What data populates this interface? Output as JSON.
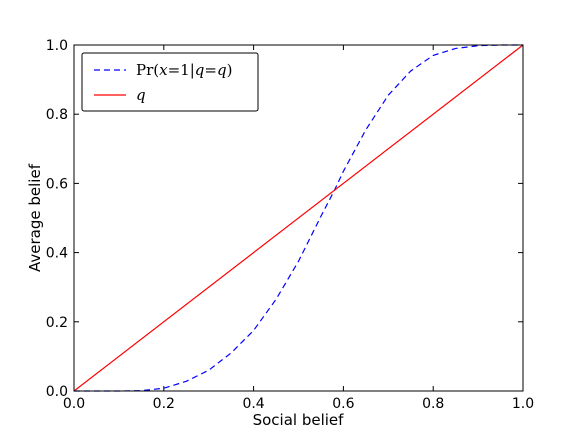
{
  "chart_data": {
    "type": "line",
    "title": "",
    "xlabel": "Social belief",
    "ylabel": "Average belief",
    "xlim": [
      0.0,
      1.0
    ],
    "ylim": [
      0.0,
      1.0
    ],
    "xticks": [
      "0.0",
      "0.2",
      "0.4",
      "0.6",
      "0.8",
      "1.0"
    ],
    "yticks": [
      "0.0",
      "0.2",
      "0.4",
      "0.6",
      "0.8",
      "1.0"
    ],
    "grid": false,
    "legend_position": "top-left",
    "series": [
      {
        "name": "Pr(x=1|q=q)",
        "style": "dashed",
        "color": "#0000ff",
        "x": [
          0.0,
          0.05,
          0.1,
          0.15,
          0.2,
          0.25,
          0.3,
          0.35,
          0.4,
          0.45,
          0.5,
          0.55,
          0.58,
          0.6,
          0.65,
          0.7,
          0.75,
          0.8,
          0.85,
          0.9,
          0.95,
          1.0
        ],
        "y": [
          0.0,
          0.0,
          0.0,
          0.001,
          0.008,
          0.028,
          0.06,
          0.11,
          0.175,
          0.265,
          0.375,
          0.505,
          0.58,
          0.635,
          0.755,
          0.855,
          0.925,
          0.97,
          0.99,
          0.998,
          1.0,
          1.0
        ]
      },
      {
        "name": "q",
        "style": "solid",
        "color": "#ff0000",
        "x": [
          0.0,
          1.0
        ],
        "y": [
          0.0,
          1.0
        ]
      }
    ]
  }
}
